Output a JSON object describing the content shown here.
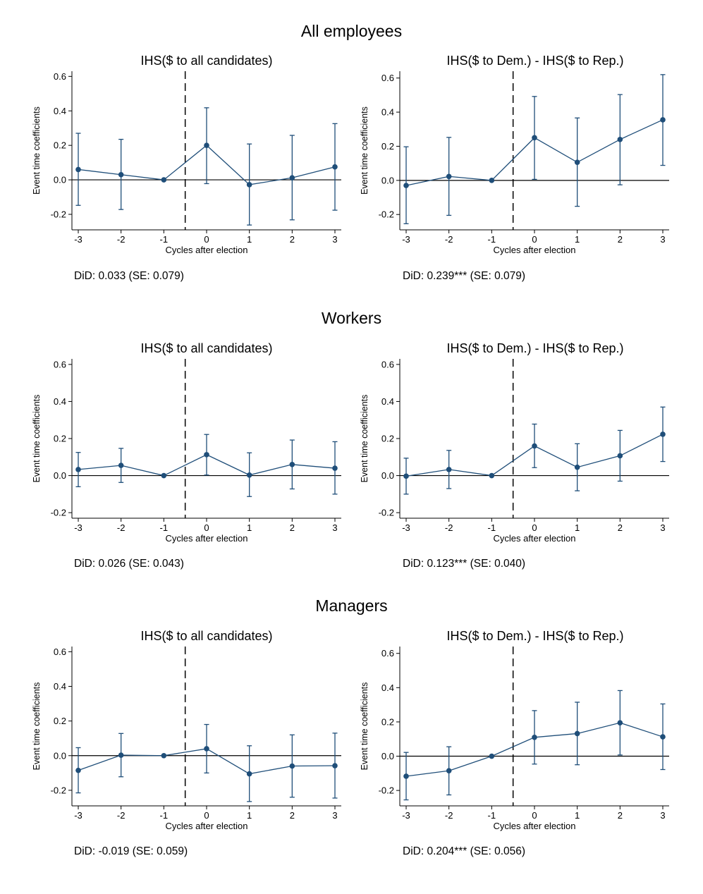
{
  "colors": {
    "series": "#1f4e79",
    "axis": "#000000",
    "zero_line": "#000000",
    "vline": "#000000",
    "background": "#ffffff"
  },
  "chart_data": [
    {
      "type": "line",
      "section": "All employees",
      "title": "IHS($ to all candidates)",
      "xlabel": "Cycles after election",
      "ylabel": "Event time coefficients",
      "x": [
        -3,
        -2,
        -1,
        0,
        1,
        2,
        3
      ],
      "values": [
        0.06,
        0.03,
        0.0,
        0.2,
        -0.028,
        0.012,
        0.075
      ],
      "ci_low": [
        -0.148,
        -0.172,
        0.0,
        -0.022,
        -0.262,
        -0.232,
        -0.176
      ],
      "ci_high": [
        0.27,
        0.235,
        0.0,
        0.418,
        0.208,
        0.258,
        0.326
      ],
      "yticks": [
        "-0.2",
        "0.0",
        "0.2",
        "0.4",
        "0.6"
      ],
      "ylim": [
        -0.29,
        0.63
      ],
      "vline_x": -0.5,
      "did": "DiD: 0.033 (SE: 0.079)"
    },
    {
      "type": "line",
      "section": "All employees",
      "title": "IHS($ to Dem.) - IHS($ to Rep.)",
      "xlabel": "Cycles after election",
      "ylabel": "Event time coefficients",
      "x": [
        -3,
        -2,
        -1,
        0,
        1,
        2,
        3
      ],
      "values": [
        -0.03,
        0.023,
        0.0,
        0.25,
        0.106,
        0.24,
        0.355
      ],
      "ci_low": [
        -0.254,
        -0.205,
        0.0,
        0.006,
        -0.152,
        -0.026,
        0.088
      ],
      "ci_high": [
        0.197,
        0.252,
        0.0,
        0.492,
        0.366,
        0.503,
        0.62
      ],
      "yticks": [
        "-0.2",
        "0.0",
        "0.2",
        "0.4",
        "0.6"
      ],
      "ylim": [
        -0.29,
        0.64
      ],
      "vline_x": -0.5,
      "did": "DiD: 0.239*** (SE: 0.079)"
    },
    {
      "type": "line",
      "section": "Workers",
      "title": "IHS($ to all candidates)",
      "xlabel": "Cycles after election",
      "ylabel": "Event time coefficients",
      "x": [
        -3,
        -2,
        -1,
        0,
        1,
        2,
        3
      ],
      "values": [
        0.033,
        0.055,
        0.0,
        0.113,
        0.003,
        0.06,
        0.04
      ],
      "ci_low": [
        -0.06,
        -0.037,
        0.0,
        0.003,
        -0.113,
        -0.072,
        -0.1
      ],
      "ci_high": [
        0.125,
        0.147,
        0.0,
        0.222,
        0.123,
        0.192,
        0.183
      ],
      "yticks": [
        "-0.2",
        "0.0",
        "0.2",
        "0.4",
        "0.6"
      ],
      "ylim": [
        -0.23,
        0.63
      ],
      "vline_x": -0.5,
      "did": "DiD: 0.026 (SE: 0.043)"
    },
    {
      "type": "line",
      "section": "Workers",
      "title": "IHS($ to Dem.) - IHS($ to Rep.)",
      "xlabel": "Cycles after election",
      "ylabel": "Event time coefficients",
      "x": [
        -3,
        -2,
        -1,
        0,
        1,
        2,
        3
      ],
      "values": [
        -0.003,
        0.033,
        0.0,
        0.16,
        0.045,
        0.107,
        0.223
      ],
      "ci_low": [
        -0.1,
        -0.07,
        0.0,
        0.043,
        -0.082,
        -0.03,
        0.076
      ],
      "ci_high": [
        0.094,
        0.136,
        0.0,
        0.278,
        0.172,
        0.244,
        0.37
      ],
      "yticks": [
        "-0.2",
        "0.0",
        "0.2",
        "0.4",
        "0.6"
      ],
      "ylim": [
        -0.23,
        0.63
      ],
      "vline_x": -0.5,
      "did": "DiD: 0.123*** (SE: 0.040)"
    },
    {
      "type": "line",
      "section": "Managers",
      "title": "IHS($ to all candidates)",
      "xlabel": "Cycles after election",
      "ylabel": "Event time coefficients",
      "x": [
        -3,
        -2,
        -1,
        0,
        1,
        2,
        3
      ],
      "values": [
        -0.085,
        0.003,
        0.0,
        0.04,
        -0.105,
        -0.06,
        -0.058
      ],
      "ci_low": [
        -0.215,
        -0.122,
        0.0,
        -0.1,
        -0.265,
        -0.24,
        -0.245
      ],
      "ci_high": [
        0.046,
        0.128,
        0.0,
        0.18,
        0.057,
        0.12,
        0.13
      ],
      "yticks": [
        "-0.2",
        "0.0",
        "0.2",
        "0.4",
        "0.6"
      ],
      "ylim": [
        -0.29,
        0.63
      ],
      "vline_x": -0.5,
      "did": "DiD: -0.019 (SE: 0.059)"
    },
    {
      "type": "line",
      "section": "Managers",
      "title": "IHS($ to Dem.) - IHS($ to Rep.)",
      "xlabel": "Cycles after election",
      "ylabel": "Event time coefficients",
      "x": [
        -3,
        -2,
        -1,
        0,
        1,
        2,
        3
      ],
      "values": [
        -0.117,
        -0.085,
        0.0,
        0.11,
        0.132,
        0.195,
        0.113
      ],
      "ci_low": [
        -0.255,
        -0.226,
        0.0,
        -0.046,
        -0.05,
        0.007,
        -0.078
      ],
      "ci_high": [
        0.022,
        0.055,
        0.0,
        0.266,
        0.315,
        0.383,
        0.305
      ],
      "yticks": [
        "-0.2",
        "0.0",
        "0.2",
        "0.4",
        "0.6"
      ],
      "ylim": [
        -0.29,
        0.64
      ],
      "vline_x": -0.5,
      "did": "DiD: 0.204*** (SE: 0.056)"
    }
  ]
}
